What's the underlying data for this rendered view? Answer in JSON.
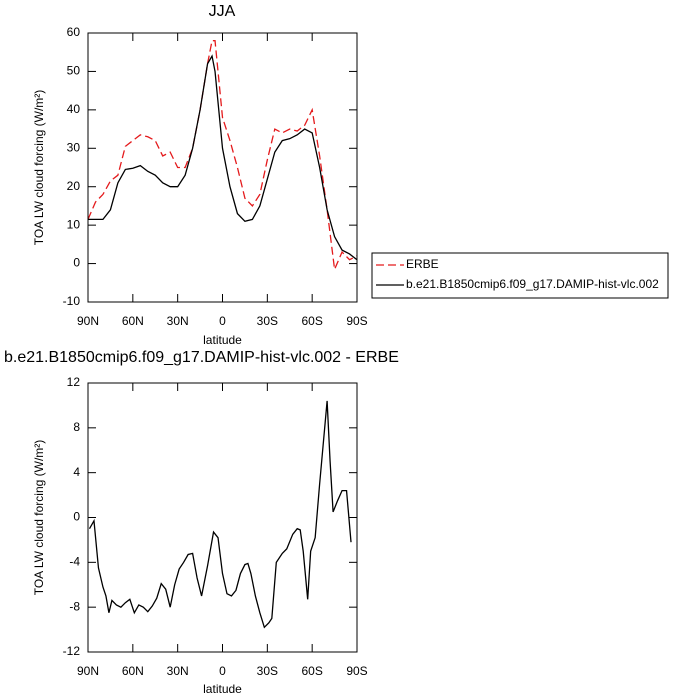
{
  "chart_data": [
    {
      "type": "line",
      "title": "JJA",
      "xlabel": "latitude",
      "ylabel": "TOA LW cloud forcing (W/m²)",
      "x": [
        90,
        85,
        80,
        75,
        70,
        65,
        60,
        55,
        50,
        45,
        40,
        35,
        30,
        25,
        20,
        15,
        10,
        7,
        5,
        0,
        -5,
        -10,
        -15,
        -20,
        -25,
        -30,
        -35,
        -40,
        -45,
        -50,
        -55,
        -60,
        -65,
        -70,
        -75,
        -80,
        -85,
        -90
      ],
      "series": [
        {
          "name": "ERBE",
          "color": "#e41a1c",
          "line_style": "dashed",
          "values": [
            11.5,
            16,
            18,
            21.5,
            23,
            30.5,
            32,
            33.5,
            33,
            32,
            28,
            29,
            25,
            25,
            30,
            40,
            52,
            58,
            58,
            38,
            32,
            25,
            17,
            15,
            18,
            27,
            35,
            34,
            35,
            34.5,
            36,
            40,
            28,
            14,
            -1.5,
            3,
            1,
            2
          ]
        },
        {
          "name": "b.e21.B1850cmip6.f09_g17.DAMIP-hist-vlc.002",
          "color": "#000000",
          "line_style": "solid",
          "values": [
            11.5,
            11.5,
            11.5,
            14,
            21,
            24.5,
            24.8,
            25.5,
            24,
            23,
            21,
            20,
            20,
            23,
            30,
            40,
            52,
            54,
            50,
            30,
            20,
            13,
            11,
            11.5,
            15,
            22,
            29,
            32,
            32.5,
            33.5,
            35,
            34,
            25,
            14,
            7,
            3.5,
            2.5,
            1
          ]
        }
      ],
      "xlim": [
        90,
        -90
      ],
      "xticks": [
        {
          "value": 90,
          "label": "90N"
        },
        {
          "value": 60,
          "label": "60N"
        },
        {
          "value": 30,
          "label": "30N"
        },
        0,
        {
          "value": -30,
          "label": "30S"
        },
        {
          "value": -60,
          "label": "60S"
        },
        {
          "value": -90,
          "label": "90S"
        }
      ],
      "ylim": [
        -10,
        60
      ],
      "yticks": [
        -10,
        0,
        10,
        20,
        30,
        40,
        50,
        60
      ],
      "grid": false,
      "legend": "right"
    },
    {
      "type": "line",
      "title": "b.e21.B1850cmip6.f09_g17.DAMIP-hist-vlc.002 - ERBE",
      "xlabel": "latitude",
      "ylabel": "TOA LW cloud forcing (W/m²)",
      "x": [
        89,
        86,
        83,
        80,
        78,
        76,
        74,
        71,
        68,
        65,
        62,
        59,
        56,
        53,
        50,
        47,
        44,
        41,
        38,
        35,
        32,
        29,
        26,
        23,
        20,
        17,
        14,
        10,
        6,
        3,
        0,
        -3,
        -6,
        -9,
        -12,
        -15,
        -17,
        -19,
        -22,
        -25,
        -28,
        -31,
        -33,
        -36,
        -40,
        -43,
        -47,
        -50,
        -52,
        -54,
        -57,
        -59,
        -62,
        -65,
        -70,
        -72,
        -74,
        -77,
        -80,
        -83,
        -86
      ],
      "values": [
        -1,
        -0.3,
        -4.5,
        -6.2,
        -7,
        -8.5,
        -7.4,
        -7.8,
        -8,
        -7.6,
        -7.3,
        -8.5,
        -7.8,
        -8,
        -8.4,
        -7.9,
        -7.2,
        -5.9,
        -6.4,
        -8,
        -6,
        -4.6,
        -4,
        -3.3,
        -3.2,
        -5.4,
        -7,
        -4.3,
        -1.3,
        -1.8,
        -5,
        -6.8,
        -7,
        -6.5,
        -5,
        -4.2,
        -4.1,
        -5,
        -7,
        -8.5,
        -9.8,
        -9.4,
        -9,
        -4,
        -3.2,
        -2.8,
        -1.5,
        -1,
        -1.1,
        -3,
        -7.3,
        -3,
        -1.8,
        3,
        10.4,
        5,
        0.5,
        1.5,
        2.4,
        2.4,
        -2.2
      ],
      "color": "#000000",
      "xlim": [
        90,
        -90
      ],
      "xticks": [
        {
          "value": 90,
          "label": "90N"
        },
        {
          "value": 60,
          "label": "60N"
        },
        {
          "value": 30,
          "label": "30N"
        },
        0,
        {
          "value": -30,
          "label": "30S"
        },
        {
          "value": -60,
          "label": "60S"
        },
        {
          "value": -90,
          "label": "90S"
        }
      ],
      "ylim": [
        -12,
        12
      ],
      "yticks": [
        -12,
        -8,
        -4,
        0,
        4,
        8,
        12
      ],
      "grid": false
    }
  ]
}
